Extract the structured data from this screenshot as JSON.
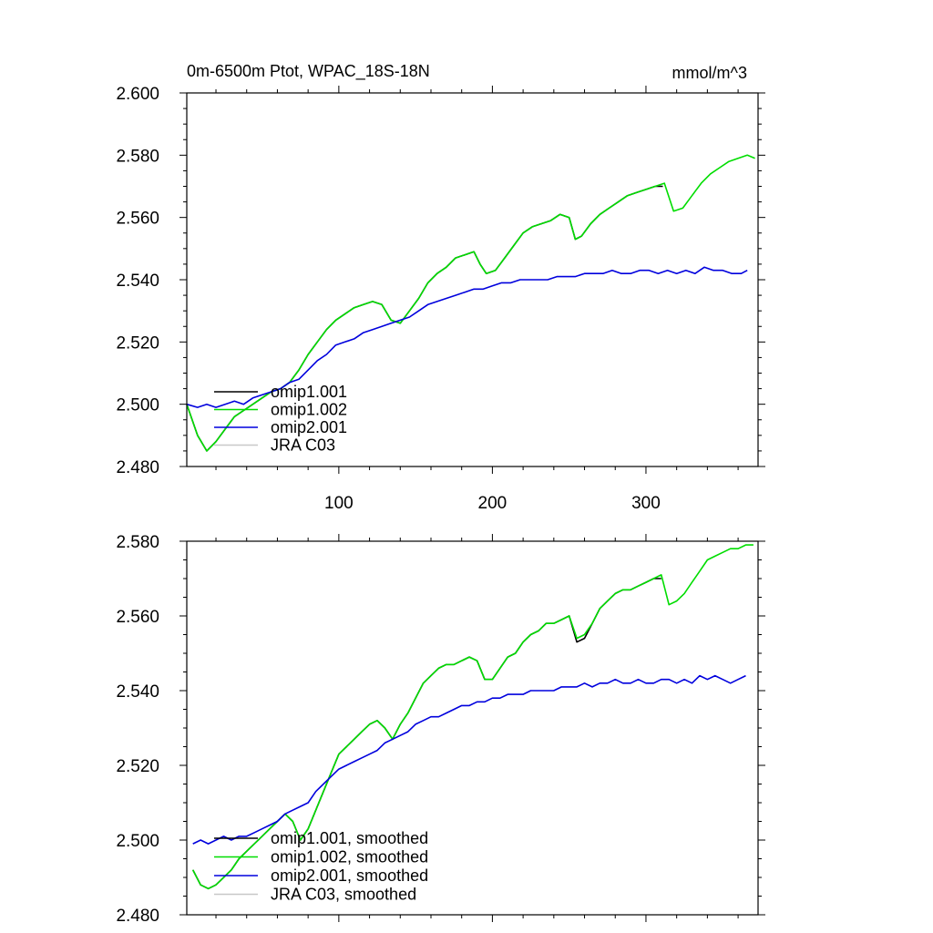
{
  "title_left": "0m-6500m Ptot, WPAC_18S-18N",
  "title_right": "mmol/m^3",
  "colors": {
    "omip1_001": "#000000",
    "omip1_002": "#00dd00",
    "omip2_001": "#0000dd",
    "jra_c03": "#c8c8c8"
  },
  "chart_data": [
    {
      "type": "line",
      "xlim": [
        1,
        373
      ],
      "ylim": [
        2.48,
        2.6
      ],
      "xticks": [
        100,
        200,
        300
      ],
      "xtick_labels": [
        "100",
        "200",
        "300"
      ],
      "yticks": [
        2.48,
        2.5,
        2.52,
        2.54,
        2.56,
        2.58,
        2.6
      ],
      "ytick_labels": [
        "2.480",
        "2.500",
        "2.520",
        "2.540",
        "2.560",
        "2.580",
        "2.600"
      ],
      "legend": "bottom-left",
      "series": [
        {
          "name": "omip1.001",
          "color": "#000000",
          "x": [
            1,
            8,
            14,
            20,
            26,
            32,
            38,
            44,
            50,
            56,
            62,
            68,
            74,
            80,
            86,
            92,
            98,
            104,
            110,
            116,
            122,
            128,
            134,
            140,
            146,
            152,
            158,
            164,
            170,
            176,
            182,
            188,
            192,
            196,
            202,
            208,
            214,
            220,
            226,
            232,
            238,
            244,
            250,
            254,
            258,
            264,
            270,
            276,
            282,
            288,
            294,
            300,
            306,
            311
          ],
          "y": [
            2.5,
            2.49,
            2.485,
            2.488,
            2.492,
            2.496,
            2.498,
            2.5,
            2.502,
            2.504,
            2.505,
            2.507,
            2.511,
            2.516,
            2.52,
            2.524,
            2.527,
            2.529,
            2.531,
            2.532,
            2.533,
            2.532,
            2.527,
            2.526,
            2.53,
            2.534,
            2.539,
            2.542,
            2.544,
            2.547,
            2.548,
            2.549,
            2.545,
            2.542,
            2.543,
            2.547,
            2.551,
            2.555,
            2.557,
            2.558,
            2.559,
            2.561,
            2.56,
            2.553,
            2.554,
            2.558,
            2.561,
            2.563,
            2.565,
            2.567,
            2.568,
            2.569,
            2.57,
            2.57
          ]
        },
        {
          "name": "omip1.002",
          "color": "#00dd00",
          "x": [
            1,
            8,
            14,
            20,
            26,
            32,
            38,
            44,
            50,
            56,
            62,
            68,
            74,
            80,
            86,
            92,
            98,
            104,
            110,
            116,
            122,
            128,
            134,
            140,
            146,
            152,
            158,
            164,
            170,
            176,
            182,
            188,
            192,
            196,
            202,
            208,
            214,
            220,
            226,
            232,
            238,
            244,
            250,
            254,
            258,
            264,
            270,
            276,
            282,
            288,
            294,
            300,
            306,
            312,
            318,
            324,
            330,
            336,
            342,
            348,
            354,
            360,
            366,
            371
          ],
          "y": [
            2.5,
            2.49,
            2.485,
            2.488,
            2.492,
            2.496,
            2.498,
            2.5,
            2.502,
            2.504,
            2.505,
            2.507,
            2.511,
            2.516,
            2.52,
            2.524,
            2.527,
            2.529,
            2.531,
            2.532,
            2.533,
            2.532,
            2.527,
            2.526,
            2.53,
            2.534,
            2.539,
            2.542,
            2.544,
            2.547,
            2.548,
            2.549,
            2.545,
            2.542,
            2.543,
            2.547,
            2.551,
            2.555,
            2.557,
            2.558,
            2.559,
            2.561,
            2.56,
            2.553,
            2.554,
            2.558,
            2.561,
            2.563,
            2.565,
            2.567,
            2.568,
            2.569,
            2.57,
            2.571,
            2.562,
            2.563,
            2.567,
            2.571,
            2.574,
            2.576,
            2.578,
            2.579,
            2.58,
            2.579
          ]
        },
        {
          "name": "omip2.001",
          "color": "#0000dd",
          "x": [
            1,
            8,
            14,
            20,
            26,
            32,
            38,
            44,
            50,
            56,
            62,
            68,
            74,
            80,
            86,
            92,
            98,
            104,
            110,
            116,
            122,
            128,
            134,
            140,
            146,
            152,
            158,
            164,
            170,
            176,
            182,
            188,
            194,
            200,
            206,
            212,
            218,
            224,
            230,
            236,
            242,
            248,
            254,
            260,
            266,
            272,
            278,
            284,
            290,
            296,
            302,
            308,
            314,
            320,
            326,
            332,
            338,
            344,
            350,
            356,
            362,
            366
          ],
          "y": [
            2.5,
            2.499,
            2.5,
            2.499,
            2.5,
            2.501,
            2.5,
            2.502,
            2.503,
            2.504,
            2.505,
            2.507,
            2.508,
            2.511,
            2.514,
            2.516,
            2.519,
            2.52,
            2.521,
            2.523,
            2.524,
            2.525,
            2.526,
            2.527,
            2.528,
            2.53,
            2.532,
            2.533,
            2.534,
            2.535,
            2.536,
            2.537,
            2.537,
            2.538,
            2.539,
            2.539,
            2.54,
            2.54,
            2.54,
            2.54,
            2.541,
            2.541,
            2.541,
            2.542,
            2.542,
            2.542,
            2.543,
            2.542,
            2.542,
            2.543,
            2.543,
            2.542,
            2.543,
            2.542,
            2.543,
            2.542,
            2.544,
            2.543,
            2.543,
            2.542,
            2.542,
            2.543
          ]
        },
        {
          "name": "JRA C03",
          "color": "#c8c8c8",
          "x": [],
          "y": []
        }
      ]
    },
    {
      "type": "line",
      "xlim": [
        1,
        373
      ],
      "ylim": [
        2.48,
        2.58
      ],
      "xticks": [
        100,
        200,
        300
      ],
      "xtick_labels": [],
      "yticks": [
        2.48,
        2.5,
        2.52,
        2.54,
        2.56,
        2.58
      ],
      "ytick_labels": [
        "2.480",
        "2.500",
        "2.520",
        "2.540",
        "2.560",
        "2.580"
      ],
      "legend": "bottom-left",
      "series": [
        {
          "name": "omip1.001, smoothed",
          "color": "#000000",
          "x": [
            5,
            10,
            15,
            20,
            25,
            30,
            35,
            40,
            45,
            50,
            55,
            60,
            65,
            70,
            75,
            80,
            85,
            90,
            95,
            100,
            105,
            110,
            115,
            120,
            125,
            130,
            135,
            140,
            145,
            150,
            155,
            160,
            165,
            170,
            175,
            180,
            185,
            190,
            195,
            200,
            205,
            210,
            215,
            220,
            225,
            230,
            235,
            240,
            245,
            250,
            255,
            260,
            265,
            270,
            275,
            280,
            285,
            290,
            295,
            300,
            305,
            310
          ],
          "y": [
            2.492,
            2.488,
            2.487,
            2.488,
            2.49,
            2.492,
            2.495,
            2.497,
            2.499,
            2.501,
            2.503,
            2.505,
            2.507,
            2.505,
            2.5,
            2.503,
            2.508,
            2.513,
            2.518,
            2.523,
            2.525,
            2.527,
            2.529,
            2.531,
            2.532,
            2.53,
            2.527,
            2.531,
            2.534,
            2.538,
            2.542,
            2.544,
            2.546,
            2.547,
            2.547,
            2.548,
            2.549,
            2.548,
            2.543,
            2.543,
            2.546,
            2.549,
            2.55,
            2.553,
            2.555,
            2.556,
            2.558,
            2.558,
            2.559,
            2.56,
            2.553,
            2.554,
            2.558,
            2.562,
            2.564,
            2.566,
            2.567,
            2.567,
            2.568,
            2.569,
            2.57,
            2.57
          ]
        },
        {
          "name": "omip1.002, smoothed",
          "color": "#00dd00",
          "x": [
            5,
            10,
            15,
            20,
            25,
            30,
            35,
            40,
            45,
            50,
            55,
            60,
            65,
            70,
            75,
            80,
            85,
            90,
            95,
            100,
            105,
            110,
            115,
            120,
            125,
            130,
            135,
            140,
            145,
            150,
            155,
            160,
            165,
            170,
            175,
            180,
            185,
            190,
            195,
            200,
            205,
            210,
            215,
            220,
            225,
            230,
            235,
            240,
            245,
            250,
            255,
            260,
            265,
            270,
            275,
            280,
            285,
            290,
            295,
            300,
            305,
            310,
            315,
            320,
            325,
            330,
            335,
            340,
            345,
            350,
            355,
            360,
            365,
            370
          ],
          "y": [
            2.492,
            2.488,
            2.487,
            2.488,
            2.49,
            2.492,
            2.495,
            2.497,
            2.499,
            2.501,
            2.503,
            2.505,
            2.507,
            2.505,
            2.5,
            2.503,
            2.508,
            2.513,
            2.518,
            2.523,
            2.525,
            2.527,
            2.529,
            2.531,
            2.532,
            2.53,
            2.527,
            2.531,
            2.534,
            2.538,
            2.542,
            2.544,
            2.546,
            2.547,
            2.547,
            2.548,
            2.549,
            2.548,
            2.543,
            2.543,
            2.546,
            2.549,
            2.55,
            2.553,
            2.555,
            2.556,
            2.558,
            2.558,
            2.559,
            2.56,
            2.554,
            2.555,
            2.558,
            2.562,
            2.564,
            2.566,
            2.567,
            2.567,
            2.568,
            2.569,
            2.57,
            2.571,
            2.563,
            2.564,
            2.566,
            2.569,
            2.572,
            2.575,
            2.576,
            2.577,
            2.578,
            2.578,
            2.579,
            2.579
          ]
        },
        {
          "name": "omip2.001, smoothed",
          "color": "#0000dd",
          "x": [
            5,
            10,
            15,
            20,
            25,
            30,
            35,
            40,
            45,
            50,
            55,
            60,
            65,
            70,
            75,
            80,
            85,
            90,
            95,
            100,
            105,
            110,
            115,
            120,
            125,
            130,
            135,
            140,
            145,
            150,
            155,
            160,
            165,
            170,
            175,
            180,
            185,
            190,
            195,
            200,
            205,
            210,
            215,
            220,
            225,
            230,
            235,
            240,
            245,
            250,
            255,
            260,
            265,
            270,
            275,
            280,
            285,
            290,
            295,
            300,
            305,
            310,
            315,
            320,
            325,
            330,
            335,
            340,
            345,
            350,
            355,
            360,
            365
          ],
          "y": [
            2.499,
            2.5,
            2.499,
            2.5,
            2.501,
            2.5,
            2.501,
            2.501,
            2.502,
            2.503,
            2.504,
            2.505,
            2.507,
            2.508,
            2.509,
            2.51,
            2.513,
            2.515,
            2.517,
            2.519,
            2.52,
            2.521,
            2.522,
            2.523,
            2.524,
            2.526,
            2.527,
            2.528,
            2.529,
            2.531,
            2.532,
            2.533,
            2.533,
            2.534,
            2.535,
            2.536,
            2.536,
            2.537,
            2.537,
            2.538,
            2.538,
            2.539,
            2.539,
            2.539,
            2.54,
            2.54,
            2.54,
            2.54,
            2.541,
            2.541,
            2.541,
            2.542,
            2.541,
            2.542,
            2.542,
            2.543,
            2.542,
            2.542,
            2.543,
            2.542,
            2.542,
            2.543,
            2.543,
            2.542,
            2.543,
            2.542,
            2.544,
            2.543,
            2.544,
            2.543,
            2.542,
            2.543,
            2.544
          ]
        },
        {
          "name": "JRA C03, smoothed",
          "color": "#c8c8c8",
          "x": [],
          "y": []
        }
      ]
    }
  ]
}
